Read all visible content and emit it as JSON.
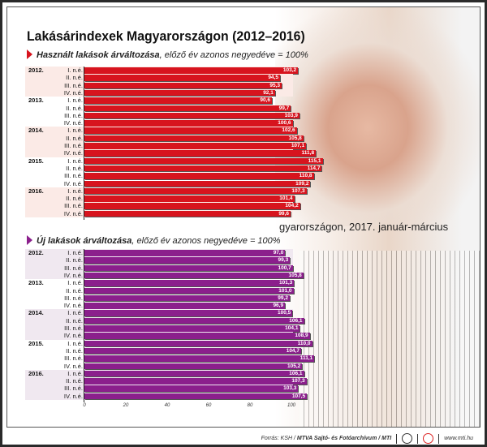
{
  "title": "Lakásárindexek Magyarországon (2012–2016)",
  "background_text": "gyarországon, 2017. január-március",
  "footer": {
    "source": "Forrás: KSH / ",
    "credit": "MTVA Sajtó- és Fotóarchívum / MTI",
    "url": "www.mti.hu",
    "logos": [
      "mtva-logo",
      "mti-logo"
    ]
  },
  "chart_data": [
    {
      "type": "bar",
      "orientation": "horizontal",
      "subtitle_bold": "Használt lakások árváltozása",
      "subtitle_rest": ", előző év azonos negyedéve = 100%",
      "color": "#d7141e",
      "band_color": "#fbeae6",
      "categories_year": [
        "2012.",
        "",
        "",
        "",
        "2013.",
        "",
        "",
        "",
        "2014.",
        "",
        "",
        "",
        "2015.",
        "",
        "",
        "",
        "2016.",
        "",
        "",
        ""
      ],
      "categories_quarter": [
        "I. n.é.",
        "II. n.é.",
        "III. n.é.",
        "IV. n.é.",
        "I. n.é.",
        "II. n.é.",
        "III. n.é.",
        "IV. n.é.",
        "I. n.é.",
        "II. n.é.",
        "III. n.é.",
        "IV. n.é.",
        "I. n.é.",
        "II. n.é.",
        "III. n.é.",
        "IV. n.é.",
        "I. n.é.",
        "II. n.é.",
        "III. n.é.",
        "IV. n.é."
      ],
      "values": [
        103.2,
        94.5,
        95.3,
        92.1,
        90.6,
        99.7,
        103.9,
        100.6,
        102.6,
        105.8,
        107.1,
        111.8,
        115.1,
        114.7,
        110.8,
        109.2,
        107.3,
        101.4,
        104.2,
        99.6
      ],
      "labels": [
        "103,2",
        "94,5",
        "95,3",
        "92,1",
        "90,6",
        "99,7",
        "103,9",
        "100,6",
        "102,6",
        "105,8",
        "107,1",
        "111,8",
        "115,1",
        "114,7",
        "110,8",
        "109,2",
        "107,3",
        "101,4",
        "104,2",
        "99,6"
      ],
      "xlim": [
        0,
        120
      ]
    },
    {
      "type": "bar",
      "orientation": "horizontal",
      "subtitle_bold": "Új lakások árváltozása",
      "subtitle_rest": ", előző év azonos negyedéve = 100%",
      "color": "#8b1f8c",
      "band_color": "#f0e8f0",
      "categories_year": [
        "2012.",
        "",
        "",
        "",
        "2013.",
        "",
        "",
        "",
        "2014.",
        "",
        "",
        "",
        "2015.",
        "",
        "",
        "",
        "2016.",
        "",
        "",
        ""
      ],
      "categories_quarter": [
        "I. n.é.",
        "II. n.é.",
        "III. n.é.",
        "IV. n.é.",
        "I. n.é.",
        "II. n.é.",
        "III. n.é.",
        "IV. n.é.",
        "I. n.é.",
        "II. n.é.",
        "III. n.é.",
        "IV. n.é.",
        "I. n.é.",
        "II. n.é.",
        "III. n.é.",
        "IV. n.é.",
        "I. n.é.",
        "II. n.é.",
        "III. n.é.",
        "IV. n.é."
      ],
      "values": [
        97.0,
        99.3,
        100.7,
        105.8,
        101.3,
        101.0,
        99.2,
        96.9,
        100.5,
        106.1,
        104.1,
        108.9,
        110.0,
        104.7,
        111.1,
        105.2,
        106.1,
        107.3,
        103.3,
        107.5
      ],
      "labels": [
        "97,0",
        "99,3",
        "100,7",
        "105,8",
        "101,3",
        "101,0",
        "99,2",
        "96,9",
        "100,5",
        "106,1",
        "104,1",
        "108,9",
        "110,0",
        "104,7",
        "111,1",
        "105,2",
        "106,1",
        "107,3",
        "103,3",
        "107,5"
      ],
      "xticks": [
        "0",
        "20",
        "40",
        "60",
        "80",
        "100"
      ],
      "xlim": [
        0,
        120
      ]
    }
  ]
}
